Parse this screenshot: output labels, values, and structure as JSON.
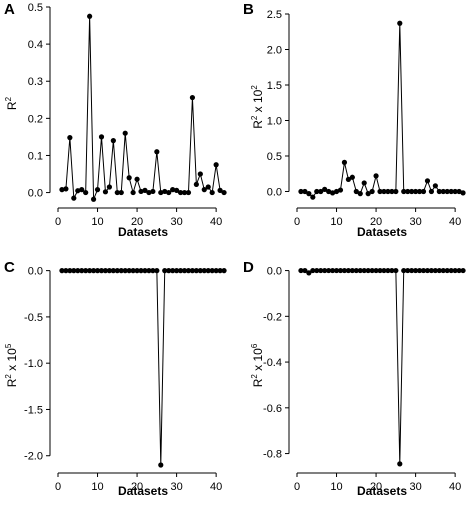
{
  "chart_data": [
    {
      "panel": "A",
      "type": "line",
      "xlabel": "Datasets",
      "ylabel": {
        "base": "R",
        "sup": "2",
        "mult": "",
        "exp": ""
      },
      "xlim": [
        0,
        43
      ],
      "xticks": [
        0,
        10,
        20,
        30,
        40
      ],
      "ylim": [
        -0.02,
        0.5
      ],
      "yticks": [
        0.0,
        0.1,
        0.2,
        0.3,
        0.4,
        0.5
      ],
      "ytick_labels": [
        "0.0",
        "0.1",
        "0.2",
        "0.3",
        "0.4",
        "0.5"
      ],
      "series": [
        {
          "x": [
            1,
            2,
            3,
            4,
            5,
            6,
            7,
            8,
            9,
            10,
            11,
            12,
            13,
            14,
            15,
            16,
            17,
            18,
            19,
            20,
            21,
            22,
            23,
            24,
            25,
            26,
            27,
            28,
            29,
            30,
            31,
            32,
            33,
            34,
            35,
            36,
            37,
            38,
            39,
            40,
            41,
            42
          ],
          "values": [
            0.008,
            0.01,
            0.148,
            -0.015,
            0.005,
            0.008,
            0.0,
            0.475,
            -0.018,
            0.008,
            0.15,
            0.002,
            0.015,
            0.14,
            0.0,
            0.0,
            0.16,
            0.04,
            0.0,
            0.036,
            0.003,
            0.006,
            0.0,
            0.003,
            0.11,
            0.0,
            0.003,
            0.0,
            0.008,
            0.006,
            0.0,
            0.0,
            0.0,
            0.256,
            0.022,
            0.05,
            0.008,
            0.015,
            0.0,
            0.075,
            0.006,
            0.0
          ]
        }
      ]
    },
    {
      "panel": "B",
      "type": "line",
      "xlabel": "Datasets",
      "ylabel": {
        "base": "R",
        "sup": "2",
        "mult": " x 10",
        "exp": "2"
      },
      "xlim": [
        0,
        43
      ],
      "xticks": [
        0,
        10,
        20,
        30,
        40
      ],
      "ylim": [
        -0.12,
        2.5
      ],
      "yticks": [
        0.0,
        0.5,
        1.0,
        1.5,
        2.0,
        2.5
      ],
      "ytick_labels": [
        "0.0",
        "0.5",
        "1.0",
        "1.5",
        "2.0",
        "2.5"
      ],
      "series": [
        {
          "x": [
            1,
            2,
            3,
            4,
            5,
            6,
            7,
            8,
            9,
            10,
            11,
            12,
            13,
            14,
            15,
            16,
            17,
            18,
            19,
            20,
            21,
            22,
            23,
            24,
            25,
            26,
            27,
            28,
            29,
            30,
            31,
            32,
            33,
            34,
            35,
            36,
            37,
            38,
            39,
            40,
            41,
            42
          ],
          "values": [
            0.0,
            0.0,
            -0.03,
            -0.08,
            0.0,
            0.0,
            0.03,
            0.0,
            -0.02,
            0.0,
            0.02,
            0.41,
            0.17,
            0.2,
            0.0,
            -0.03,
            0.12,
            -0.03,
            0.0,
            0.22,
            0.0,
            0.0,
            0.0,
            0.0,
            0.0,
            2.37,
            0.0,
            0.0,
            0.0,
            0.0,
            0.0,
            0.0,
            0.15,
            0.0,
            0.08,
            0.0,
            0.0,
            0.0,
            0.0,
            0.0,
            0.0,
            -0.02
          ]
        }
      ]
    },
    {
      "panel": "C",
      "type": "line",
      "xlabel": "Datasets",
      "ylabel": {
        "base": "R",
        "sup": "2",
        "mult": " x 10",
        "exp": "5"
      },
      "xlim": [
        0,
        43
      ],
      "xticks": [
        0,
        10,
        20,
        30,
        40
      ],
      "ylim": [
        -2.1,
        0.05
      ],
      "yticks": [
        0.0,
        -0.5,
        -1.0,
        -1.5,
        -2.0
      ],
      "ytick_labels": [
        "0.0",
        "-0.5",
        "-1.0",
        "-1.5",
        "-2.0"
      ],
      "series": [
        {
          "x": [
            1,
            2,
            3,
            4,
            5,
            6,
            7,
            8,
            9,
            10,
            11,
            12,
            13,
            14,
            15,
            16,
            17,
            18,
            19,
            20,
            21,
            22,
            23,
            24,
            25,
            26,
            27,
            28,
            29,
            30,
            31,
            32,
            33,
            34,
            35,
            36,
            37,
            38,
            39,
            40,
            41,
            42
          ],
          "values": [
            0,
            0,
            0,
            0,
            0,
            0,
            0,
            0,
            0,
            0,
            0,
            0,
            0,
            0,
            0,
            0,
            0,
            0,
            0,
            0,
            0,
            0,
            0,
            0,
            0,
            -2.1,
            0,
            0,
            0,
            0,
            0,
            0,
            0,
            0,
            0,
            0,
            0,
            0,
            0,
            0,
            0,
            0
          ]
        }
      ]
    },
    {
      "panel": "D",
      "type": "line",
      "xlabel": "Datasets",
      "ylabel": {
        "base": "R",
        "sup": "2",
        "mult": " x 10",
        "exp": "6"
      },
      "xlim": [
        0,
        43
      ],
      "xticks": [
        0,
        10,
        20,
        30,
        40
      ],
      "ylim": [
        -0.85,
        0.02
      ],
      "yticks": [
        0.0,
        -0.2,
        -0.4,
        -0.6,
        -0.8
      ],
      "ytick_labels": [
        "0.0",
        "-0.2",
        "-0.4",
        "-0.6",
        "-0.8"
      ],
      "series": [
        {
          "x": [
            1,
            2,
            3,
            4,
            5,
            6,
            7,
            8,
            9,
            10,
            11,
            12,
            13,
            14,
            15,
            16,
            17,
            18,
            19,
            20,
            21,
            22,
            23,
            24,
            25,
            26,
            27,
            28,
            29,
            30,
            31,
            32,
            33,
            34,
            35,
            36,
            37,
            38,
            39,
            40,
            41,
            42
          ],
          "values": [
            0,
            0,
            -0.01,
            0,
            0,
            0,
            0,
            0,
            0,
            0,
            0,
            0,
            0,
            0,
            0,
            0,
            0,
            0,
            0,
            0,
            0,
            0,
            0,
            0,
            0,
            -0.845,
            0,
            0,
            0,
            0,
            0,
            0,
            0,
            0,
            0,
            0,
            0,
            0,
            0,
            0,
            0,
            0
          ]
        }
      ]
    }
  ]
}
